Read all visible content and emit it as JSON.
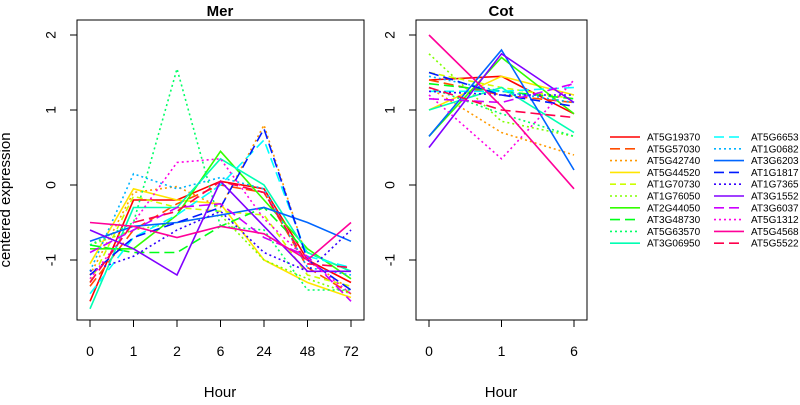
{
  "ylabel": "centered expression",
  "colors": [
    "#ff0000",
    "#ff4d00",
    "#ff9900",
    "#ffe500",
    "#ccff00",
    "#80ff00",
    "#33ff00",
    "#00ff19",
    "#00ff66",
    "#00ffb2",
    "#00ffff",
    "#00b3ff",
    "#0066ff",
    "#001aff",
    "#3300ff",
    "#8000ff",
    "#cc00ff",
    "#ff00e6",
    "#ff0099",
    "#ff004c"
  ],
  "dashes": [
    "solid",
    "longdash",
    "dotted",
    "solid",
    "dashed",
    "dotted",
    "solid",
    "longdash",
    "dotted",
    "solid",
    "longdash",
    "dotted",
    "solid",
    "longdash",
    "dotted",
    "solid",
    "longdash",
    "dotted",
    "solid",
    "longdash"
  ],
  "legend_rows": [
    [
      "AT5G19370",
      "AT5G6653"
    ],
    [
      "AT5G57030",
      "AT1G0682"
    ],
    [
      "AT5G42740",
      "AT3G6203"
    ],
    [
      "AT5G44520",
      "AT1G1817"
    ],
    [
      "AT1G70730",
      "AT1G7365"
    ],
    [
      "AT1G76050",
      "AT3G1552"
    ],
    [
      "AT2G44050",
      "AT3G6037"
    ],
    [
      "AT3G48730",
      "AT5G1312"
    ],
    [
      "AT5G63570",
      "AT5G4568"
    ],
    [
      "AT3G06950",
      "AT5G5522"
    ]
  ],
  "chart_data": [
    {
      "type": "line",
      "title": "Mer",
      "xlabel": "Hour",
      "ylabel": "centered expression",
      "categories": [
        "0",
        "1",
        "2",
        "6",
        "24",
        "48",
        "72"
      ],
      "yticks": [
        "-1",
        "0",
        "1",
        "2"
      ],
      "ylim": [
        -1.8,
        2.2
      ],
      "grid": false,
      "legend_position": "right",
      "series": [
        {
          "name": "AT5G19370",
          "values": [
            -1.55,
            -0.2,
            -0.2,
            0.05,
            -0.05,
            -1.0,
            -1.3
          ]
        },
        {
          "name": "AT5G57030",
          "values": [
            -1.35,
            -0.6,
            -0.25,
            0.0,
            -0.1,
            -1.1,
            -1.45
          ]
        },
        {
          "name": "AT5G42740",
          "values": [
            -1.2,
            -0.1,
            -0.02,
            -0.3,
            0.8,
            -1.0,
            -1.4
          ]
        },
        {
          "name": "AT5G44520",
          "values": [
            -1.05,
            -0.05,
            -0.2,
            -0.25,
            -1.0,
            -1.3,
            -1.5
          ]
        },
        {
          "name": "AT1G70730",
          "values": [
            -1.3,
            -0.15,
            -0.3,
            -0.35,
            -0.4,
            -1.2,
            -1.35
          ]
        },
        {
          "name": "AT1G76050",
          "values": [
            -0.8,
            -0.6,
            -0.5,
            -0.4,
            -1.0,
            -1.25,
            -1.45
          ]
        },
        {
          "name": "AT2G44050",
          "values": [
            -0.85,
            -0.85,
            -0.4,
            0.45,
            -0.2,
            -0.85,
            -1.25
          ]
        },
        {
          "name": "AT3G48730",
          "values": [
            -0.8,
            -0.9,
            -0.9,
            -0.55,
            -0.3,
            -0.9,
            -1.15
          ]
        },
        {
          "name": "AT5G63570",
          "values": [
            -0.8,
            -0.5,
            1.55,
            -0.55,
            -0.6,
            -1.4,
            -1.4
          ]
        },
        {
          "name": "AT3G06950",
          "values": [
            -1.65,
            -0.3,
            -0.3,
            0.35,
            0.0,
            -0.9,
            -1.15
          ]
        },
        {
          "name": "AT5G6653",
          "values": [
            -1.45,
            -0.7,
            -0.4,
            0.0,
            0.6,
            -0.95,
            -1.1
          ]
        },
        {
          "name": "AT1G0682",
          "values": [
            -1.15,
            0.15,
            -0.05,
            0.1,
            -0.05,
            -1.1,
            -1.2
          ]
        },
        {
          "name": "AT3G6203",
          "values": [
            -0.75,
            -0.55,
            -0.5,
            -0.4,
            -0.3,
            -0.5,
            -0.75
          ]
        },
        {
          "name": "AT1G1817",
          "values": [
            -1.2,
            -0.7,
            -0.5,
            -0.3,
            0.75,
            -1.0,
            -1.4
          ]
        },
        {
          "name": "AT1G7365",
          "values": [
            -1.15,
            -0.95,
            -0.6,
            -0.35,
            -0.9,
            -1.15,
            -0.6
          ]
        },
        {
          "name": "AT3G1552",
          "values": [
            -0.6,
            -0.85,
            -1.2,
            0.05,
            -0.55,
            -1.15,
            -1.15
          ]
        },
        {
          "name": "AT3G6037",
          "values": [
            -0.9,
            -0.6,
            -0.3,
            -0.25,
            -0.7,
            -0.95,
            -1.55
          ]
        },
        {
          "name": "AT5G1312",
          "values": [
            -1.25,
            -0.5,
            0.3,
            0.35,
            -0.45,
            -1.0,
            -1.45
          ]
        },
        {
          "name": "AT5G4568",
          "values": [
            -0.5,
            -0.55,
            -0.7,
            -0.55,
            -0.65,
            -1.0,
            -0.5
          ]
        },
        {
          "name": "AT5G5522",
          "values": [
            -1.3,
            -0.5,
            -0.35,
            0.05,
            -0.1,
            -1.05,
            -1.1
          ]
        }
      ]
    },
    {
      "type": "line",
      "title": "Cot",
      "xlabel": "Hour",
      "ylabel": "centered expression",
      "categories": [
        "0",
        "1",
        "6"
      ],
      "yticks": [
        "-1",
        "0",
        "1",
        "2"
      ],
      "ylim": [
        -1.8,
        2.2
      ],
      "grid": false,
      "legend_position": "right",
      "series": [
        {
          "name": "AT5G19370",
          "values": [
            1.4,
            1.45,
            0.95
          ]
        },
        {
          "name": "AT5G57030",
          "values": [
            1.4,
            1.2,
            1.1
          ]
        },
        {
          "name": "AT5G42740",
          "values": [
            1.3,
            0.7,
            0.4
          ]
        },
        {
          "name": "AT5G44520",
          "values": [
            1.0,
            1.45,
            1.2
          ]
        },
        {
          "name": "AT1G70730",
          "values": [
            1.5,
            1.3,
            1.15
          ]
        },
        {
          "name": "AT1G76050",
          "values": [
            1.75,
            0.85,
            0.65
          ]
        },
        {
          "name": "AT2G44050",
          "values": [
            0.65,
            1.7,
            0.95
          ]
        },
        {
          "name": "AT3G48730",
          "values": [
            1.35,
            1.25,
            1.15
          ]
        },
        {
          "name": "AT5G63570",
          "values": [
            1.3,
            0.95,
            0.65
          ]
        },
        {
          "name": "AT3G06950",
          "values": [
            1.0,
            1.3,
            0.7
          ]
        },
        {
          "name": "AT5G6653",
          "values": [
            1.25,
            1.25,
            1.3
          ]
        },
        {
          "name": "AT1G0682",
          "values": [
            1.45,
            1.25,
            1.1
          ]
        },
        {
          "name": "AT3G6203",
          "values": [
            0.65,
            1.8,
            0.2
          ]
        },
        {
          "name": "AT1G1817",
          "values": [
            1.5,
            1.2,
            1.05
          ]
        },
        {
          "name": "AT1G7365",
          "values": [
            1.25,
            1.2,
            1.2
          ]
        },
        {
          "name": "AT3G1552",
          "values": [
            0.5,
            1.75,
            1.1
          ]
        },
        {
          "name": "AT3G6037",
          "values": [
            1.15,
            1.1,
            1.35
          ]
        },
        {
          "name": "AT5G1312",
          "values": [
            1.2,
            0.35,
            1.4
          ]
        },
        {
          "name": "AT5G4568",
          "values": [
            2.0,
            1.05,
            -0.05
          ]
        },
        {
          "name": "AT5G5522",
          "values": [
            1.3,
            1.0,
            0.9
          ]
        }
      ]
    }
  ]
}
